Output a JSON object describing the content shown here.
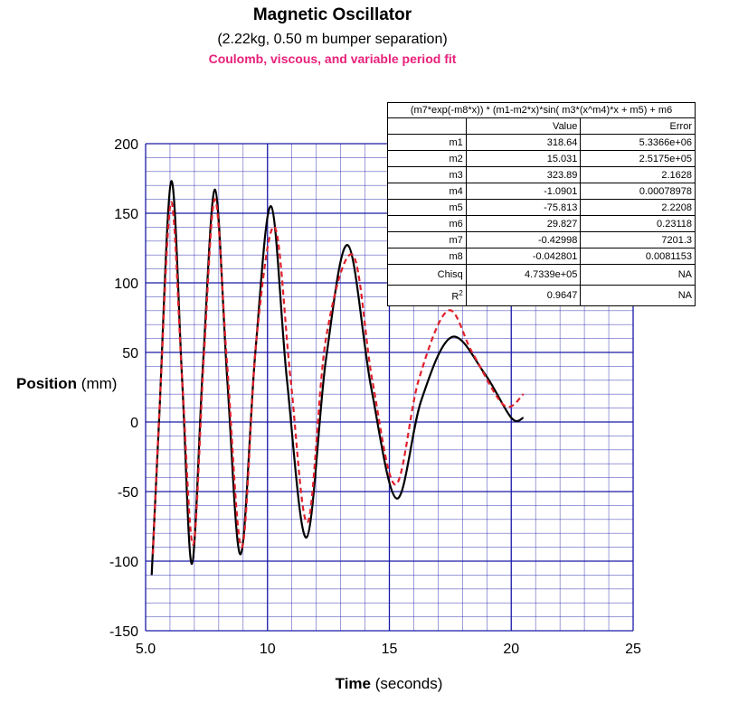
{
  "titles": {
    "main": "Magnetic Oscillator",
    "sub": "(2.22kg, 0.50 m bumper separation)",
    "fit": "Coulomb, viscous, and variable period fit"
  },
  "colors": {
    "data": "#000000",
    "fit": "#e0202a",
    "grid": "#1a1aa8",
    "fit_title": "#e8217a"
  },
  "table": {
    "formula": "(m7*exp(-m8*x)) * (m1-m2*x)*sin( m3*(x^m4)*x + m5) + m6",
    "headers": [
      "",
      "Value",
      "Error"
    ],
    "rows": [
      {
        "name": "m1",
        "value": "318.64",
        "error": "5.3366e+06"
      },
      {
        "name": "m2",
        "value": "15.031",
        "error": "2.5175e+05"
      },
      {
        "name": "m3",
        "value": "323.89",
        "error": "2.1628"
      },
      {
        "name": "m4",
        "value": "-1.0901",
        "error": "0.00078978"
      },
      {
        "name": "m5",
        "value": "-75.813",
        "error": "2.2208"
      },
      {
        "name": "m6",
        "value": "29.827",
        "error": "0.23118"
      },
      {
        "name": "m7",
        "value": "-0.42998",
        "error": "7201.3"
      },
      {
        "name": "m8",
        "value": "-0.042801",
        "error": "0.0081153"
      },
      {
        "name": "Chisq",
        "value": "4.7339e+05",
        "error": "NA"
      },
      {
        "name": "R",
        "sup": "2",
        "value": "0.9647",
        "error": "NA"
      }
    ]
  },
  "chart_data": {
    "type": "line",
    "xlabel": {
      "bold": "Time",
      "rest": " (seconds)"
    },
    "ylabel": {
      "bold": "Position",
      "rest": " (mm)"
    },
    "xlim": [
      5.0,
      25
    ],
    "ylim": [
      -150,
      200
    ],
    "x_ticks": [
      {
        "v": 5,
        "label": "5.0"
      },
      {
        "v": 10,
        "label": "10"
      },
      {
        "v": 15,
        "label": "15"
      },
      {
        "v": 20,
        "label": "20"
      },
      {
        "v": 25,
        "label": "25"
      }
    ],
    "y_ticks": [
      {
        "v": -150,
        "label": "-150"
      },
      {
        "v": -100,
        "label": "-100"
      },
      {
        "v": -50,
        "label": "-50"
      },
      {
        "v": 0,
        "label": "0"
      },
      {
        "v": 50,
        "label": "50"
      },
      {
        "v": 100,
        "label": "100"
      },
      {
        "v": 150,
        "label": "150"
      },
      {
        "v": 200,
        "label": "200"
      }
    ],
    "grid": true,
    "series": [
      {
        "style": "solid-black",
        "points": [
          [
            5.25,
            -110
          ],
          [
            5.55,
            0
          ],
          [
            6.05,
            173
          ],
          [
            6.5,
            30
          ],
          [
            6.9,
            -102
          ],
          [
            7.35,
            40
          ],
          [
            7.85,
            167
          ],
          [
            8.35,
            30
          ],
          [
            8.9,
            -95
          ],
          [
            9.5,
            50
          ],
          [
            10.15,
            155
          ],
          [
            10.8,
            30
          ],
          [
            11.6,
            -83
          ],
          [
            12.4,
            45
          ],
          [
            13.3,
            127
          ],
          [
            14.25,
            25
          ],
          [
            15.3,
            -55
          ],
          [
            16.3,
            15
          ],
          [
            17.55,
            61
          ],
          [
            18.9,
            35
          ],
          [
            20.0,
            3
          ],
          [
            20.5,
            3
          ]
        ]
      },
      {
        "style": "dashed-red",
        "points": [
          [
            5.3,
            -95
          ],
          [
            5.6,
            20
          ],
          [
            6.05,
            158
          ],
          [
            6.5,
            30
          ],
          [
            6.95,
            -88
          ],
          [
            7.4,
            50
          ],
          [
            7.85,
            160
          ],
          [
            8.35,
            40
          ],
          [
            8.95,
            -90
          ],
          [
            9.55,
            60
          ],
          [
            10.3,
            140
          ],
          [
            10.95,
            30
          ],
          [
            11.65,
            -72
          ],
          [
            12.4,
            60
          ],
          [
            13.5,
            120
          ],
          [
            14.3,
            30
          ],
          [
            15.25,
            -45
          ],
          [
            16.2,
            30
          ],
          [
            17.4,
            80
          ],
          [
            18.4,
            50
          ],
          [
            19.7,
            12
          ],
          [
            20.5,
            20
          ]
        ]
      }
    ]
  }
}
